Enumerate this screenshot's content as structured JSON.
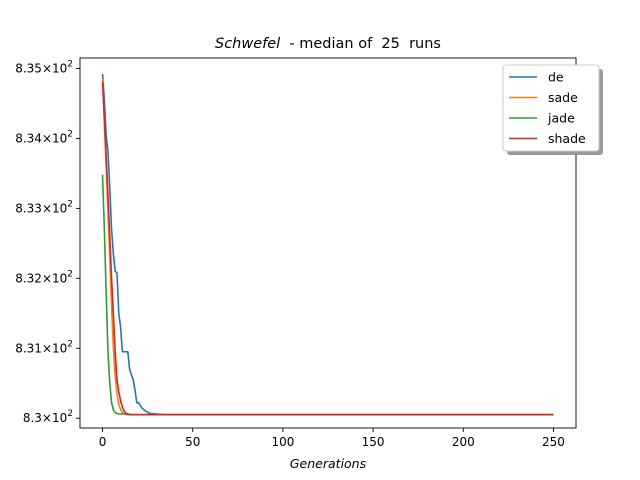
{
  "chart_data": {
    "type": "line",
    "title_name": "Schwefel",
    "title_rest": "  - median of  25  runs",
    "xlabel": "Generations",
    "ylabel": "",
    "xlim": [
      -12.5,
      262.5
    ],
    "ylim": [
      829.86,
      835.15
    ],
    "x_ticks": [
      0,
      50,
      100,
      150,
      200,
      250
    ],
    "y_ticks": [
      {
        "value": 830,
        "mantissa": "8.3",
        "exp": "2"
      },
      {
        "value": 831,
        "mantissa": "8.31",
        "exp": "2"
      },
      {
        "value": 832,
        "mantissa": "8.32",
        "exp": "2"
      },
      {
        "value": 833,
        "mantissa": "8.33",
        "exp": "2"
      },
      {
        "value": 834,
        "mantissa": "8.34",
        "exp": "2"
      },
      {
        "value": 835,
        "mantissa": "8.35",
        "exp": "2"
      }
    ],
    "grid": false,
    "legend_position": "top-right",
    "series": [
      {
        "name": "de",
        "color": "#1f77b4",
        "points": [
          [
            0,
            834.92
          ],
          [
            1,
            834.55
          ],
          [
            2,
            834.05
          ],
          [
            3,
            833.82
          ],
          [
            4,
            833.3
          ],
          [
            5,
            832.7
          ],
          [
            6,
            832.35
          ],
          [
            7,
            832.1
          ],
          [
            8,
            832.08
          ],
          [
            9,
            831.5
          ],
          [
            10,
            831.3
          ],
          [
            11,
            830.95
          ],
          [
            12,
            830.95
          ],
          [
            13,
            830.95
          ],
          [
            14,
            830.95
          ],
          [
            15,
            830.7
          ],
          [
            16,
            830.62
          ],
          [
            17,
            830.55
          ],
          [
            18,
            830.4
          ],
          [
            19,
            830.22
          ],
          [
            20,
            830.22
          ],
          [
            21,
            830.18
          ],
          [
            22,
            830.14
          ],
          [
            24,
            830.1
          ],
          [
            26,
            830.07
          ],
          [
            30,
            830.06
          ],
          [
            35,
            830.05
          ],
          [
            40,
            830.05
          ],
          [
            60,
            830.05
          ],
          [
            100,
            830.05
          ],
          [
            150,
            830.05
          ],
          [
            200,
            830.05
          ],
          [
            250,
            830.05
          ]
        ]
      },
      {
        "name": "sade",
        "color": "#ff7f0e",
        "points": [
          [
            0,
            834.85
          ],
          [
            1,
            834.2
          ],
          [
            2,
            833.6
          ],
          [
            3,
            832.95
          ],
          [
            4,
            832.3
          ],
          [
            5,
            831.6
          ],
          [
            6,
            831.0
          ],
          [
            7,
            830.6
          ],
          [
            8,
            830.35
          ],
          [
            9,
            830.2
          ],
          [
            10,
            830.12
          ],
          [
            11,
            830.08
          ],
          [
            12,
            830.06
          ],
          [
            13,
            830.05
          ],
          [
            15,
            830.05
          ],
          [
            20,
            830.05
          ],
          [
            50,
            830.05
          ],
          [
            100,
            830.05
          ],
          [
            150,
            830.05
          ],
          [
            200,
            830.05
          ],
          [
            250,
            830.05
          ]
        ]
      },
      {
        "name": "jade",
        "color": "#2ca02c",
        "points": [
          [
            0,
            833.48
          ],
          [
            1,
            832.7
          ],
          [
            2,
            831.8
          ],
          [
            3,
            830.95
          ],
          [
            4,
            830.5
          ],
          [
            5,
            830.22
          ],
          [
            6,
            830.12
          ],
          [
            7,
            830.08
          ],
          [
            8,
            830.07
          ],
          [
            9,
            830.06
          ],
          [
            10,
            830.06
          ],
          [
            12,
            830.06
          ],
          [
            15,
            830.05
          ],
          [
            20,
            830.05
          ],
          [
            50,
            830.05
          ],
          [
            100,
            830.05
          ],
          [
            150,
            830.05
          ],
          [
            200,
            830.05
          ],
          [
            250,
            830.05
          ]
        ]
      },
      {
        "name": "shade",
        "color": "#d62728",
        "points": [
          [
            0,
            834.8
          ],
          [
            1,
            834.3
          ],
          [
            2,
            833.75
          ],
          [
            3,
            833.2
          ],
          [
            4,
            832.6
          ],
          [
            5,
            832.0
          ],
          [
            6,
            831.5
          ],
          [
            7,
            830.95
          ],
          [
            8,
            830.55
          ],
          [
            9,
            830.38
          ],
          [
            10,
            830.25
          ],
          [
            11,
            830.16
          ],
          [
            12,
            830.1
          ],
          [
            13,
            830.07
          ],
          [
            14,
            830.06
          ],
          [
            16,
            830.05
          ],
          [
            20,
            830.05
          ],
          [
            50,
            830.05
          ],
          [
            100,
            830.05
          ],
          [
            150,
            830.05
          ],
          [
            200,
            830.05
          ],
          [
            250,
            830.05
          ]
        ]
      }
    ]
  }
}
